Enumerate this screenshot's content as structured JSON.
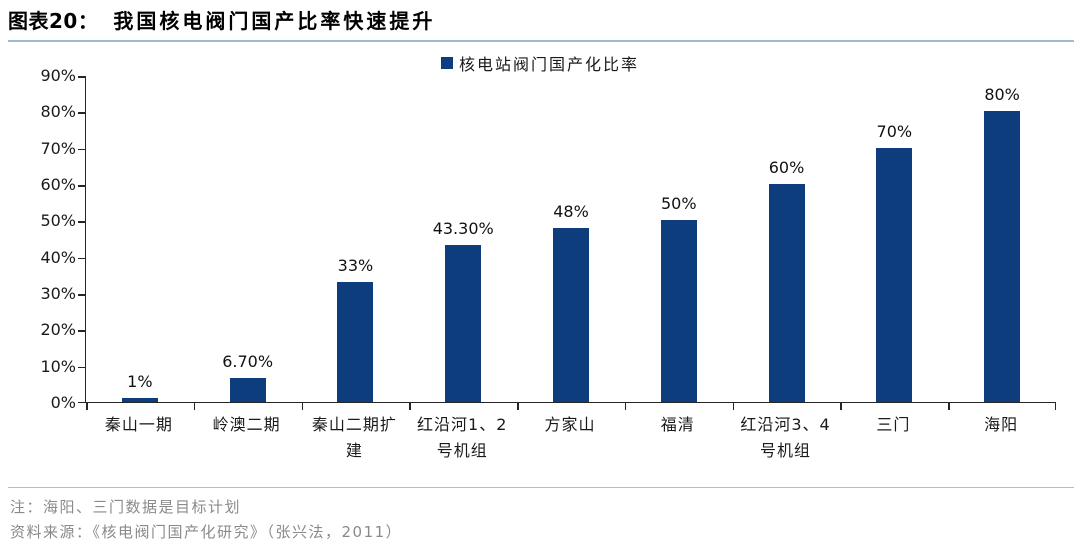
{
  "header": {
    "label": "图表20：",
    "title": "我国核电阀门国产比率快速提升"
  },
  "chart_data": {
    "type": "bar",
    "title": "我国核电阀门国产比率快速提升",
    "legend": "核电站阀门国产化比率",
    "legend_position": "top-center",
    "grid": false,
    "categories": [
      "秦山一期",
      "岭澳二期",
      "秦山二期扩\n建",
      "红沿河1、2\n号机组",
      "方家山",
      "福清",
      "红沿河3、4\n号机组",
      "三门",
      "海阳"
    ],
    "values": [
      1,
      6.7,
      33,
      43.3,
      48,
      50,
      60,
      70,
      80
    ],
    "value_labels": [
      "1%",
      "6.70%",
      "33%",
      "43.30%",
      "48%",
      "50%",
      "60%",
      "70%",
      "80%"
    ],
    "xlabel": "",
    "ylabel": "",
    "ylim": [
      0,
      90
    ],
    "ytick_step": 10,
    "yticks": [
      "0%",
      "10%",
      "20%",
      "30%",
      "40%",
      "50%",
      "60%",
      "70%",
      "80%",
      "90%"
    ]
  },
  "footer": {
    "note": "注：海阳、三门数据是目标计划",
    "source": "资料来源：《核电阀门国产化研究》（张兴法，2011）"
  },
  "colors": {
    "bar": "#0d3d7d",
    "axis": "#262626",
    "title_underline": "#9fb9cf",
    "divider": "#a8bfd4",
    "note_text": "#8a8a8a"
  }
}
